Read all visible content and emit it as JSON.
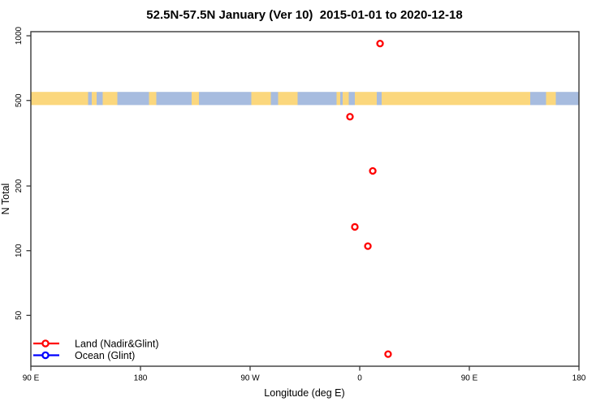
{
  "title": "52.5N-57.5N January (Ver 10)  2015-01-01 to 2020-12-18",
  "colors": {
    "land_series": "#FF0000",
    "ocean_series": "#0000FF",
    "band_land": "#FBD77D",
    "band_ocean": "#A7BCDF",
    "axis": "#383838",
    "text": "#000000",
    "background": "#FFFFFF"
  },
  "chart_data": {
    "type": "scatter",
    "title": "52.5N-57.5N January (Ver 10)  2015-01-01 to 2020-12-18",
    "xlabel": "Longitude (deg E)",
    "ylabel": "N Total",
    "y_scale": "log",
    "xlim": [
      90,
      540
    ],
    "ylim": [
      29,
      1045
    ],
    "grid": "off",
    "x_ticks": [
      {
        "v": 90,
        "label": "90 E"
      },
      {
        "v": 180,
        "label": "180"
      },
      {
        "v": 270,
        "label": "90 W"
      },
      {
        "v": 360,
        "label": "0"
      },
      {
        "v": 450,
        "label": "90 E"
      },
      {
        "v": 540,
        "label": "180"
      }
    ],
    "y_ticks": [
      {
        "v": 50,
        "label": "50"
      },
      {
        "v": 100,
        "label": "100"
      },
      {
        "v": 200,
        "label": "200"
      },
      {
        "v": 500,
        "label": "500"
      },
      {
        "v": 1000,
        "label": "1000"
      }
    ],
    "legend": {
      "position": "bottom-left",
      "items": [
        {
          "name": "Land (Nadir&Glint)",
          "color": "#FF0000",
          "marker": "open-circle-line"
        },
        {
          "name": "Ocean (Glint)",
          "color": "#0000FF",
          "marker": "open-circle-line"
        }
      ]
    },
    "series": [
      {
        "name": "Land (Nadir&Glint)",
        "color": "#FF0000",
        "points": [
          {
            "lon": 376.7,
            "n": 920
          },
          {
            "lon": 352.0,
            "n": 420
          },
          {
            "lon": 370.7,
            "n": 235
          },
          {
            "lon": 356.0,
            "n": 129
          },
          {
            "lon": 366.7,
            "n": 105
          },
          {
            "lon": 383.3,
            "n": 33
          }
        ]
      },
      {
        "name": "Ocean (Glint)",
        "color": "#0000FF",
        "points": []
      }
    ],
    "map_band": {
      "description": "land/ocean strip of the 52.5N-57.5N latitude band drawn across the plot near N=500",
      "y_top_value": 548,
      "y_bottom_value": 476,
      "land_color": "#FBD77D",
      "ocean_color": "#A7BCDF",
      "segments": [
        {
          "from": 90,
          "to": 137,
          "type": "land"
        },
        {
          "from": 137,
          "to": 140,
          "type": "ocean"
        },
        {
          "from": 140,
          "to": 144,
          "type": "land"
        },
        {
          "from": 144,
          "to": 149,
          "type": "ocean"
        },
        {
          "from": 149,
          "to": 161,
          "type": "land"
        },
        {
          "from": 161,
          "to": 187,
          "type": "ocean"
        },
        {
          "from": 187,
          "to": 193,
          "type": "land"
        },
        {
          "from": 193,
          "to": 222,
          "type": "ocean"
        },
        {
          "from": 222,
          "to": 228,
          "type": "land"
        },
        {
          "from": 228,
          "to": 271,
          "type": "ocean"
        },
        {
          "from": 271,
          "to": 287,
          "type": "land"
        },
        {
          "from": 287,
          "to": 293,
          "type": "ocean"
        },
        {
          "from": 293,
          "to": 309,
          "type": "land"
        },
        {
          "from": 309,
          "to": 341,
          "type": "ocean"
        },
        {
          "from": 341,
          "to": 344,
          "type": "land"
        },
        {
          "from": 344,
          "to": 346,
          "type": "ocean"
        },
        {
          "from": 346,
          "to": 351,
          "type": "land"
        },
        {
          "from": 351,
          "to": 356,
          "type": "ocean"
        },
        {
          "from": 356,
          "to": 374,
          "type": "land"
        },
        {
          "from": 374,
          "to": 378,
          "type": "ocean"
        },
        {
          "from": 378,
          "to": 500,
          "type": "land"
        },
        {
          "from": 500,
          "to": 513,
          "type": "ocean"
        },
        {
          "from": 513,
          "to": 521,
          "type": "land"
        },
        {
          "from": 521,
          "to": 540,
          "type": "ocean"
        }
      ]
    }
  }
}
